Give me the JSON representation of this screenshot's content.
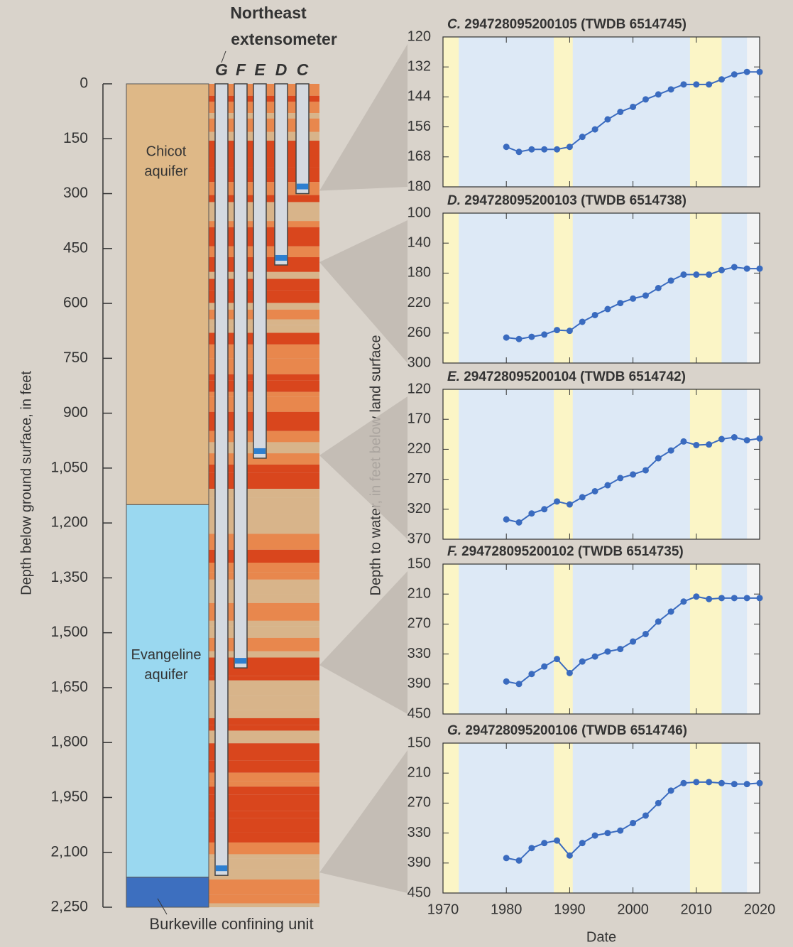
{
  "diagram": {
    "title": [
      "Northeast",
      "extensometer"
    ],
    "ylabel": "Depth below ground surface, in feet",
    "ylim": [
      0,
      2250
    ],
    "yticks": [
      0,
      150,
      300,
      450,
      600,
      750,
      900,
      {
        "value": 1050,
        "label": "1,050"
      },
      {
        "value": 1200,
        "label": "1,200"
      },
      {
        "value": 1350,
        "label": "1,350"
      },
      {
        "value": 1500,
        "label": "1,500"
      },
      {
        "value": 1650,
        "label": "1,650"
      },
      {
        "value": 1800,
        "label": "1,800"
      },
      {
        "value": 1950,
        "label": "1,950"
      },
      {
        "value": 2100,
        "label": "2,100"
      },
      {
        "value": 2250,
        "label": "2,250"
      }
    ],
    "units": [
      {
        "name": [
          "Chicot",
          "aquifer"
        ],
        "top": 0,
        "bottom": 1150,
        "color": "#deb887"
      },
      {
        "name": [
          "Evangeline",
          "aquifer"
        ],
        "top": 1150,
        "bottom": 2168,
        "color": "#9ad8f0"
      },
      {
        "name": [
          "Burkeville confining unit"
        ],
        "top": 2168,
        "bottom": 2250,
        "color": "#3d6fbf"
      }
    ],
    "extensometers": [
      {
        "name": "G",
        "bottom": 2163
      },
      {
        "name": "F",
        "bottom": 1596
      },
      {
        "name": "E",
        "bottom": 1023
      },
      {
        "name": "D",
        "bottom": 495
      },
      {
        "name": "C",
        "bottom": 300
      }
    ]
  },
  "figure": {
    "y_label": "Depth to water, in feet below land surface",
    "x_label": "Date"
  },
  "chart_data": [
    {
      "type": "line",
      "letter": "C.",
      "title": "294728095200105 (TWDB 6514745)",
      "color": "#3a6bbf",
      "invert_y": true,
      "ylim": [
        120,
        180
      ],
      "yticks": [
        120,
        132,
        144,
        156,
        168,
        180
      ],
      "xlim": [
        1970,
        2020
      ],
      "xticks": [
        1970,
        1980,
        1990,
        2000,
        2010,
        2020
      ],
      "show_xtick_labels": false,
      "shaded_periods": [
        {
          "start": 1970,
          "end": 1972.5,
          "color": "#fbf5c6"
        },
        {
          "start": 1972.5,
          "end": 1987.5,
          "color": "#dde9f6"
        },
        {
          "start": 1987.5,
          "end": 1990.5,
          "color": "#fbf5c6"
        },
        {
          "start": 1990.5,
          "end": 2009,
          "color": "#dde9f6"
        },
        {
          "start": 2009,
          "end": 2014,
          "color": "#fbf5c6"
        },
        {
          "start": 2014,
          "end": 2018,
          "color": "#dde9f6"
        },
        {
          "start": 2018,
          "end": 2020.5,
          "color": "#f2f3f4"
        }
      ],
      "x": [
        1980,
        1982,
        1984,
        1986,
        1988,
        1990,
        1992,
        1994,
        1996,
        1998,
        2000,
        2002,
        2004,
        2006,
        2008,
        2010,
        2012,
        2014,
        2016,
        2018,
        2020
      ],
      "values": [
        164,
        166,
        165,
        165,
        165,
        164,
        160,
        157,
        153,
        150,
        148,
        145,
        143,
        141,
        139,
        139,
        139,
        137,
        135,
        134,
        134
      ]
    },
    {
      "type": "line",
      "letter": "D.",
      "title": "294728095200103 (TWDB 6514738)",
      "color": "#3a6bbf",
      "invert_y": true,
      "ylim": [
        100,
        300
      ],
      "yticks": [
        100,
        140,
        180,
        220,
        260,
        300
      ],
      "xlim": [
        1970,
        2020
      ],
      "xticks": [
        1970,
        1980,
        1990,
        2000,
        2010,
        2020
      ],
      "show_xtick_labels": false,
      "shaded_periods": [
        {
          "start": 1970,
          "end": 1972.5,
          "color": "#fbf5c6"
        },
        {
          "start": 1972.5,
          "end": 1987.5,
          "color": "#dde9f6"
        },
        {
          "start": 1987.5,
          "end": 1990.5,
          "color": "#fbf5c6"
        },
        {
          "start": 1990.5,
          "end": 2009,
          "color": "#dde9f6"
        },
        {
          "start": 2009,
          "end": 2014,
          "color": "#fbf5c6"
        },
        {
          "start": 2014,
          "end": 2018,
          "color": "#dde9f6"
        },
        {
          "start": 2018,
          "end": 2020.5,
          "color": "#f2f3f4"
        }
      ],
      "x": [
        1980,
        1982,
        1984,
        1986,
        1988,
        1990,
        1992,
        1994,
        1996,
        1998,
        2000,
        2002,
        2004,
        2006,
        2008,
        2010,
        2012,
        2014,
        2016,
        2018,
        2020
      ],
      "values": [
        266,
        268,
        265,
        262,
        256,
        257,
        245,
        236,
        228,
        220,
        214,
        210,
        200,
        190,
        182,
        182,
        182,
        176,
        172,
        174,
        174
      ]
    },
    {
      "type": "line",
      "letter": "E.",
      "title": "294728095200104 (TWDB 6514742)",
      "color": "#3a6bbf",
      "invert_y": true,
      "ylim": [
        120,
        370
      ],
      "yticks": [
        120,
        170,
        220,
        270,
        320,
        370
      ],
      "xlim": [
        1970,
        2020
      ],
      "xticks": [
        1970,
        1980,
        1990,
        2000,
        2010,
        2020
      ],
      "show_xtick_labels": false,
      "shaded_periods": [
        {
          "start": 1970,
          "end": 1972.5,
          "color": "#fbf5c6"
        },
        {
          "start": 1972.5,
          "end": 1987.5,
          "color": "#dde9f6"
        },
        {
          "start": 1987.5,
          "end": 1990.5,
          "color": "#fbf5c6"
        },
        {
          "start": 1990.5,
          "end": 2009,
          "color": "#dde9f6"
        },
        {
          "start": 2009,
          "end": 2014,
          "color": "#fbf5c6"
        },
        {
          "start": 2014,
          "end": 2018,
          "color": "#dde9f6"
        },
        {
          "start": 2018,
          "end": 2020.5,
          "color": "#f2f3f4"
        }
      ],
      "x": [
        1980,
        1982,
        1984,
        1986,
        1988,
        1990,
        1992,
        1994,
        1996,
        1998,
        2000,
        2002,
        2004,
        2006,
        2008,
        2010,
        2012,
        2014,
        2016,
        2018,
        2020
      ],
      "values": [
        337,
        342,
        327,
        320,
        307,
        312,
        300,
        290,
        280,
        268,
        262,
        255,
        235,
        222,
        207,
        213,
        212,
        203,
        200,
        205,
        202
      ]
    },
    {
      "type": "line",
      "letter": "F.",
      "title": "294728095200102 (TWDB 6514735)",
      "color": "#3a6bbf",
      "invert_y": true,
      "ylim": [
        150,
        450
      ],
      "yticks": [
        150,
        210,
        270,
        330,
        390,
        450
      ],
      "xlim": [
        1970,
        2020
      ],
      "xticks": [
        1970,
        1980,
        1990,
        2000,
        2010,
        2020
      ],
      "show_xtick_labels": false,
      "shaded_periods": [
        {
          "start": 1970,
          "end": 1972.5,
          "color": "#fbf5c6"
        },
        {
          "start": 1972.5,
          "end": 1987.5,
          "color": "#dde9f6"
        },
        {
          "start": 1987.5,
          "end": 1990.5,
          "color": "#fbf5c6"
        },
        {
          "start": 1990.5,
          "end": 2009,
          "color": "#dde9f6"
        },
        {
          "start": 2009,
          "end": 2014,
          "color": "#fbf5c6"
        },
        {
          "start": 2014,
          "end": 2018,
          "color": "#dde9f6"
        },
        {
          "start": 2018,
          "end": 2020.5,
          "color": "#f2f3f4"
        }
      ],
      "x": [
        1980,
        1982,
        1984,
        1986,
        1988,
        1990,
        1992,
        1994,
        1996,
        1998,
        2000,
        2002,
        2004,
        2006,
        2008,
        2010,
        2012,
        2014,
        2016,
        2018,
        2020
      ],
      "values": [
        385,
        390,
        370,
        355,
        340,
        368,
        345,
        335,
        325,
        320,
        305,
        290,
        265,
        245,
        225,
        215,
        220,
        218,
        218,
        218,
        218
      ]
    },
    {
      "type": "line",
      "letter": "G.",
      "title": "294728095200106 (TWDB 6514746)",
      "color": "#3a6bbf",
      "invert_y": true,
      "ylim": [
        150,
        450
      ],
      "yticks": [
        150,
        210,
        270,
        330,
        390,
        450
      ],
      "xlim": [
        1970,
        2020
      ],
      "xticks": [
        1970,
        1980,
        1990,
        2000,
        2010,
        2020
      ],
      "show_xtick_labels": true,
      "shaded_periods": [
        {
          "start": 1970,
          "end": 1972.5,
          "color": "#fbf5c6"
        },
        {
          "start": 1972.5,
          "end": 1987.5,
          "color": "#dde9f6"
        },
        {
          "start": 1987.5,
          "end": 1990.5,
          "color": "#fbf5c6"
        },
        {
          "start": 1990.5,
          "end": 2009,
          "color": "#dde9f6"
        },
        {
          "start": 2009,
          "end": 2014,
          "color": "#fbf5c6"
        },
        {
          "start": 2014,
          "end": 2018,
          "color": "#dde9f6"
        },
        {
          "start": 2018,
          "end": 2020.5,
          "color": "#f2f3f4"
        }
      ],
      "x": [
        1980,
        1982,
        1984,
        1986,
        1988,
        1990,
        1992,
        1994,
        1996,
        1998,
        2000,
        2002,
        2004,
        2006,
        2008,
        2010,
        2012,
        2014,
        2016,
        2018,
        2020
      ],
      "values": [
        380,
        385,
        360,
        350,
        345,
        375,
        350,
        335,
        330,
        325,
        310,
        295,
        270,
        245,
        230,
        228,
        228,
        230,
        232,
        232,
        230
      ]
    }
  ]
}
